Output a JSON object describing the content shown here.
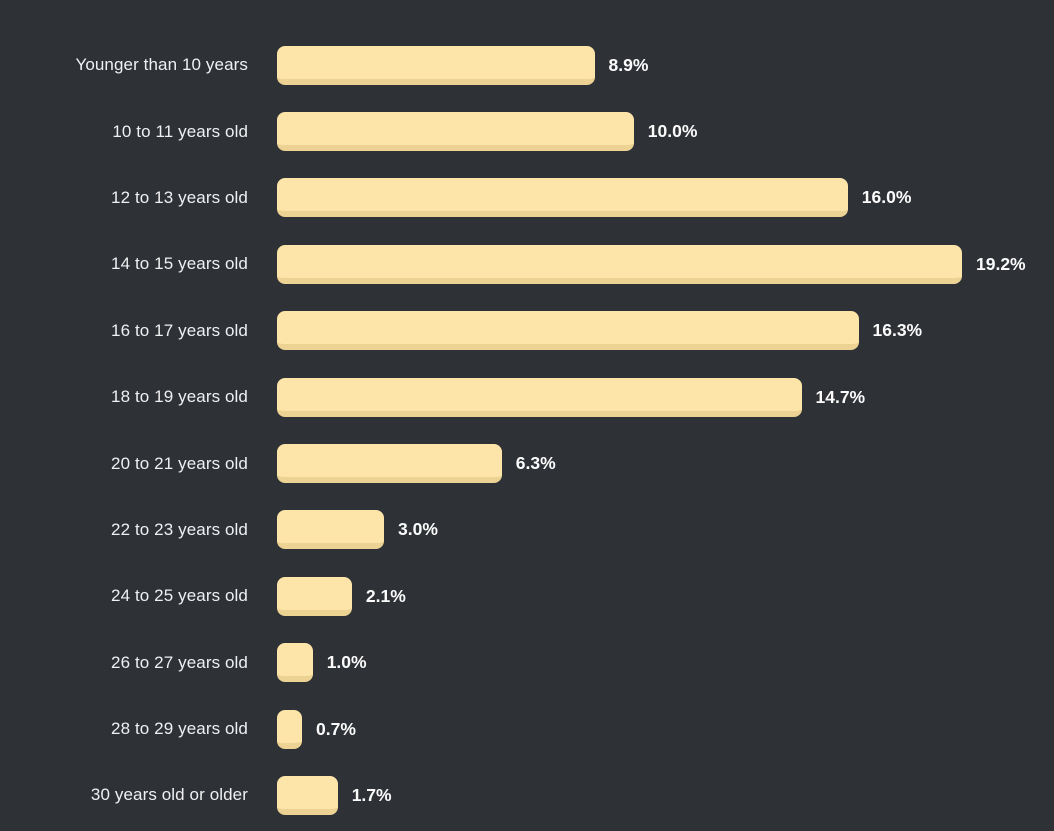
{
  "chart_data": {
    "type": "bar",
    "orientation": "horizontal",
    "title": "",
    "xlabel": "",
    "ylabel": "",
    "legend_visible": false,
    "grid": false,
    "axes_visible": false,
    "xlim": [
      0,
      19.2
    ],
    "categories": [
      "Younger than 10 years",
      "10 to 11 years old",
      "12 to 13 years old",
      "14 to 15 years old",
      "16 to 17 years old",
      "18 to 19 years old",
      "20 to 21 years old",
      "22 to 23 years old",
      "24 to 25 years old",
      "26 to 27 years old",
      "28 to 29 years old",
      "30 years old or older"
    ],
    "values": [
      8.9,
      10.0,
      16.0,
      19.2,
      16.3,
      14.7,
      6.3,
      3.0,
      2.1,
      1.0,
      0.7,
      1.7
    ],
    "value_labels": [
      "8.9%",
      "10.0%",
      "16.0%",
      "19.2%",
      "16.3%",
      "14.7%",
      "6.3%",
      "3.0%",
      "2.1%",
      "1.0%",
      "0.7%",
      "1.7%"
    ],
    "colors": {
      "background": "#2e3136",
      "bar_fill": "#fde4a8",
      "bar_bottom_edge": "#ecd394",
      "category_text": "#eff0f2",
      "value_text": "#fbfbfc"
    }
  }
}
